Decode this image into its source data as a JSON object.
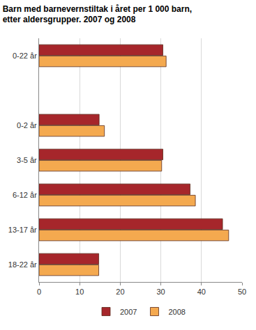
{
  "chart_data": {
    "type": "bar",
    "orientation": "horizontal",
    "title": "Barn med barnevernstiltak i året per 1 000 barn, etter aldersgrupper. 2007 og 2008",
    "categories": [
      "0-22 år",
      null,
      "0-2 år",
      "3-5 år",
      "6-12 år",
      "13-17 år",
      "18-22 år"
    ],
    "series": [
      {
        "name": "2007",
        "color": "#a6262b",
        "values": [
          30.5,
          null,
          14.8,
          30.5,
          37.2,
          45.2,
          14.7
        ]
      },
      {
        "name": "2008",
        "color": "#f4a94f",
        "values": [
          31.3,
          null,
          16.1,
          30.2,
          38.5,
          46.7,
          14.7
        ]
      }
    ],
    "xlim": [
      0,
      50
    ],
    "xticks": [
      0,
      10,
      20,
      30,
      40,
      50
    ],
    "grid": true,
    "legend": "bottom"
  }
}
